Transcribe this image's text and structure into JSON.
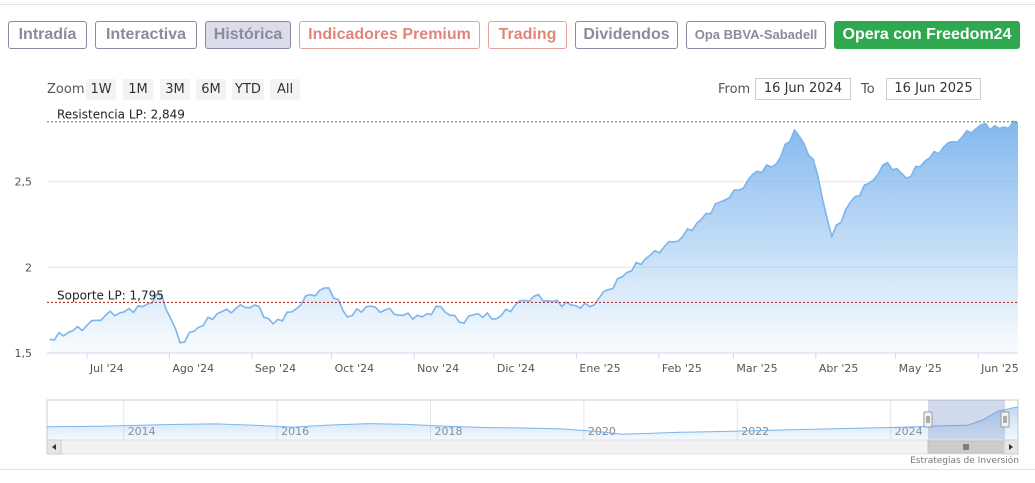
{
  "tabs": [
    {
      "label": "Intradía",
      "style": "normal"
    },
    {
      "label": "Interactiva",
      "style": "normal"
    },
    {
      "label": "Histórica",
      "style": "active"
    },
    {
      "label": "Indicadores Premium",
      "style": "premium"
    },
    {
      "label": "Trading",
      "style": "premium"
    },
    {
      "label": "Dividendos",
      "style": "normal"
    },
    {
      "label": "Opa BBVA-Sabadell",
      "style": "small"
    },
    {
      "label": "Opera con Freedom24",
      "style": "green"
    }
  ],
  "zoom": {
    "label": "Zoom",
    "buttons": [
      "1W",
      "1M",
      "3M",
      "6M",
      "YTD",
      "All"
    ]
  },
  "range": {
    "from_label": "From",
    "from_value": "16 Jun 2024",
    "to_label": "To",
    "to_value": "16 Jun 2025"
  },
  "credit": "Estrategias de Inversión",
  "colors": {
    "line": "#7cb5ec",
    "resistance": "#3a9a3a",
    "support": "#a11d1d",
    "active_tab": "#dcdcea",
    "green_button": "#2fa84f"
  },
  "chart_data": {
    "type": "area",
    "ylim": [
      1.5,
      2.9
    ],
    "yticks": [
      1.5,
      2,
      2.5
    ],
    "ytick_labels": [
      "1,5",
      "2",
      "2,5"
    ],
    "xticks": [
      "2024-07-01",
      "2024-08-01",
      "2024-09-01",
      "2024-10-01",
      "2024-11-01",
      "2024-12-01",
      "2025-01-01",
      "2025-02-01",
      "2025-03-01",
      "2025-04-01",
      "2025-05-01",
      "2025-06-01"
    ],
    "xtick_labels": [
      "Jul '24",
      "Ago '24",
      "Sep '24",
      "Oct '24",
      "Nov '24",
      "Dic '24",
      "Ene '25",
      "Feb '25",
      "Mar '25",
      "Abr '25",
      "May '25",
      "Jun '25"
    ],
    "xrange": [
      "2024-06-16",
      "2025-06-16"
    ],
    "series": [
      {
        "x": [
          "2024-06-17",
          "2024-06-24",
          "2024-07-01",
          "2024-07-08",
          "2024-07-15",
          "2024-07-22",
          "2024-07-29",
          "2024-08-05",
          "2024-08-12",
          "2024-08-19",
          "2024-08-26",
          "2024-09-02",
          "2024-09-09",
          "2024-09-16",
          "2024-09-23",
          "2024-09-30",
          "2024-10-07",
          "2024-10-14",
          "2024-10-21",
          "2024-10-28",
          "2024-11-04",
          "2024-11-11",
          "2024-11-18",
          "2024-11-25",
          "2024-12-02",
          "2024-12-09",
          "2024-12-16",
          "2024-12-23",
          "2024-12-30",
          "2025-01-06",
          "2025-01-13",
          "2025-01-20",
          "2025-01-27",
          "2025-02-03",
          "2025-02-10",
          "2025-02-17",
          "2025-02-24",
          "2025-03-03",
          "2025-03-10",
          "2025-03-17",
          "2025-03-24",
          "2025-03-31",
          "2025-04-07",
          "2025-04-14",
          "2025-04-21",
          "2025-04-28",
          "2025-05-05",
          "2025-05-12",
          "2025-05-19",
          "2025-05-26",
          "2025-06-02",
          "2025-06-09",
          "2025-06-16"
        ],
        "y": [
          1.58,
          1.62,
          1.66,
          1.72,
          1.74,
          1.77,
          1.84,
          1.56,
          1.65,
          1.73,
          1.76,
          1.78,
          1.67,
          1.74,
          1.84,
          1.88,
          1.71,
          1.77,
          1.75,
          1.72,
          1.71,
          1.77,
          1.68,
          1.73,
          1.7,
          1.78,
          1.83,
          1.8,
          1.78,
          1.77,
          1.87,
          1.97,
          2.05,
          2.12,
          2.18,
          2.28,
          2.38,
          2.45,
          2.56,
          2.6,
          2.8,
          2.63,
          2.18,
          2.38,
          2.49,
          2.61,
          2.52,
          2.62,
          2.7,
          2.76,
          2.83,
          2.81,
          2.84
        ]
      }
    ],
    "annotations": [
      {
        "label": "Resistencia LP: 2,849",
        "value": 2.849,
        "kind": "resistance"
      },
      {
        "label": "Soporte LP: 1,795",
        "value": 1.795,
        "kind": "support"
      }
    ],
    "navigator": {
      "year_labels": [
        "2014",
        "2016",
        "2018",
        "2020",
        "2022",
        "2024"
      ],
      "x": [
        2012.8,
        2013.5,
        2014.0,
        2014.5,
        2015.0,
        2015.5,
        2016.0,
        2016.5,
        2017.0,
        2017.5,
        2018.0,
        2018.5,
        2019.0,
        2019.5,
        2020.0,
        2020.3,
        2020.7,
        2021.0,
        2021.5,
        2022.0,
        2022.5,
        2023.0,
        2023.5,
        2024.0,
        2024.3,
        2024.5,
        2024.8,
        2025.0,
        2025.2,
        2025.46
      ],
      "y": [
        1.72,
        1.75,
        1.8,
        1.85,
        1.88,
        1.8,
        1.7,
        1.82,
        1.9,
        1.85,
        1.75,
        1.68,
        1.65,
        1.6,
        1.45,
        1.3,
        1.35,
        1.4,
        1.45,
        1.5,
        1.55,
        1.6,
        1.65,
        1.7,
        1.75,
        1.78,
        1.8,
        2.1,
        2.6,
        2.84
      ],
      "selection": [
        "2024-06-16",
        "2025-06-16"
      ]
    }
  }
}
